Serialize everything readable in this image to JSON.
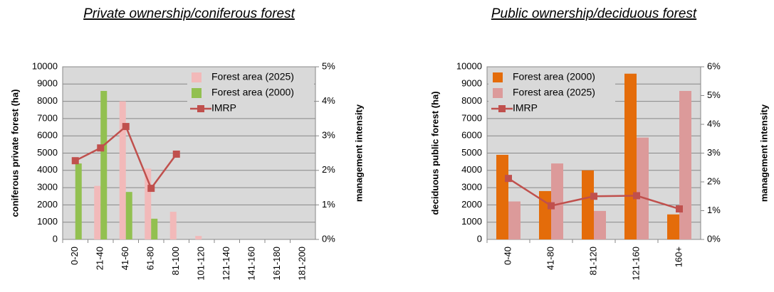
{
  "chart_data": [
    {
      "type": "bar",
      "title": "Private ownership/coniferous forest",
      "ylabel": "coniferous private forest (ha)",
      "y2label": "management intensity",
      "categories": [
        "0-20",
        "21-40",
        "41-60",
        "61-80",
        "81-100",
        "101-120",
        "121-140",
        "141-160",
        "161-180",
        "181-200"
      ],
      "series": [
        {
          "name": "Forest area (2025)",
          "color": "#f2b9b9",
          "values": [
            0,
            3100,
            8000,
            4100,
            1600,
            200,
            0,
            0,
            0,
            0
          ]
        },
        {
          "name": "Forest area (2000)",
          "color": "#92c050",
          "values": [
            4400,
            8600,
            2750,
            1200,
            0,
            0,
            0,
            0,
            0,
            0
          ]
        },
        {
          "name": "IMRP",
          "type": "line",
          "axis": "y2",
          "color": "#c0504d",
          "values": [
            2.28,
            2.65,
            3.27,
            1.48,
            2.47,
            null,
            null,
            null,
            null,
            null
          ]
        }
      ],
      "ylim": [
        0,
        10000
      ],
      "yticks": [
        0,
        1000,
        2000,
        3000,
        4000,
        5000,
        6000,
        7000,
        8000,
        9000,
        10000
      ],
      "y2lim": [
        0,
        5
      ],
      "y2ticks": [
        {
          "value": 0,
          "label": "0%"
        },
        {
          "value": 1,
          "label": "1%"
        },
        {
          "value": 2,
          "label": "2%"
        },
        {
          "value": 3,
          "label": "3%"
        },
        {
          "value": 4,
          "label": "4%"
        },
        {
          "value": 5,
          "label": "5%"
        }
      ],
      "grid": true,
      "legend": "upper right"
    },
    {
      "type": "bar",
      "title": "Public ownership/deciduous forest",
      "ylabel": "deciduous public forest (ha)",
      "y2label": "management intensity",
      "categories": [
        "0-40",
        "41-80",
        "81-120",
        "121-160",
        "160+"
      ],
      "series": [
        {
          "name": "Forest area (2000)",
          "color": "#e46c0a",
          "values": [
            4900,
            2800,
            4000,
            9600,
            1450
          ]
        },
        {
          "name": "Forest area (2025)",
          "color": "#dc9a9a",
          "values": [
            2200,
            4400,
            1650,
            5900,
            8600
          ]
        },
        {
          "name": "IMRP",
          "type": "line",
          "axis": "y2",
          "color": "#c0504d",
          "values": [
            2.12,
            1.17,
            1.5,
            1.52,
            1.06
          ]
        }
      ],
      "ylim": [
        0,
        10000
      ],
      "yticks": [
        0,
        1000,
        2000,
        3000,
        4000,
        5000,
        6000,
        7000,
        8000,
        9000,
        10000
      ],
      "y2lim": [
        0,
        6
      ],
      "y2ticks": [
        {
          "value": 0,
          "label": "0%"
        },
        {
          "value": 1,
          "label": "1%"
        },
        {
          "value": 2,
          "label": "2%"
        },
        {
          "value": 3,
          "label": "3%"
        },
        {
          "value": 4,
          "label": "4%"
        },
        {
          "value": 5,
          "label": "5%"
        },
        {
          "value": 6,
          "label": "6%"
        }
      ],
      "grid": true,
      "legend": "upper left"
    }
  ]
}
